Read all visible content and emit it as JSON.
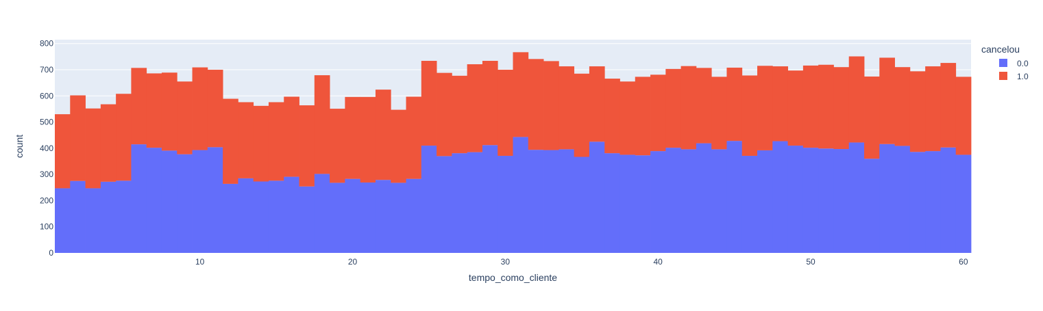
{
  "chart_data": {
    "type": "bar",
    "barmode": "stack",
    "title": "",
    "xlabel": "tempo_como_cliente",
    "ylabel": "count",
    "xlim": [
      0.5,
      60.5
    ],
    "ylim": [
      0,
      815
    ],
    "x_ticks": [
      10,
      20,
      30,
      40,
      50,
      60
    ],
    "y_ticks": [
      0,
      100,
      200,
      300,
      400,
      500,
      600,
      700,
      800
    ],
    "grid": true,
    "legend_title": "cancelou",
    "legend_position": "right",
    "x": [
      1,
      2,
      3,
      4,
      5,
      6,
      7,
      8,
      9,
      10,
      11,
      12,
      13,
      14,
      15,
      16,
      17,
      18,
      19,
      20,
      21,
      22,
      23,
      24,
      25,
      26,
      27,
      28,
      29,
      30,
      31,
      32,
      33,
      34,
      35,
      36,
      37,
      38,
      39,
      40,
      41,
      42,
      43,
      44,
      45,
      46,
      47,
      48,
      49,
      50,
      51,
      52,
      53,
      54,
      55,
      56,
      57,
      58,
      59,
      60
    ],
    "series": [
      {
        "name": "0.0",
        "color": "#636efa",
        "values": [
          247,
          275,
          247,
          272,
          276,
          415,
          402,
          391,
          377,
          393,
          404,
          264,
          285,
          273,
          276,
          291,
          254,
          302,
          268,
          283,
          269,
          279,
          268,
          283,
          410,
          370,
          381,
          385,
          412,
          371,
          443,
          394,
          393,
          396,
          367,
          425,
          381,
          375,
          373,
          389,
          402,
          396,
          419,
          396,
          428,
          371,
          392,
          427,
          410,
          402,
          399,
          397,
          422,
          360,
          416,
          409,
          386,
          389,
          403,
          375
        ]
      },
      {
        "name": "1.0",
        "color": "#ef553b",
        "values": [
          283,
          327,
          305,
          296,
          332,
          292,
          284,
          298,
          278,
          316,
          296,
          325,
          291,
          289,
          300,
          306,
          310,
          377,
          283,
          313,
          327,
          345,
          279,
          314,
          324,
          318,
          296,
          336,
          322,
          329,
          324,
          347,
          340,
          317,
          318,
          288,
          285,
          280,
          300,
          292,
          301,
          318,
          288,
          277,
          280,
          307,
          323,
          286,
          287,
          314,
          320,
          313,
          329,
          314,
          330,
          301,
          308,
          324,
          323,
          298
        ]
      }
    ]
  }
}
